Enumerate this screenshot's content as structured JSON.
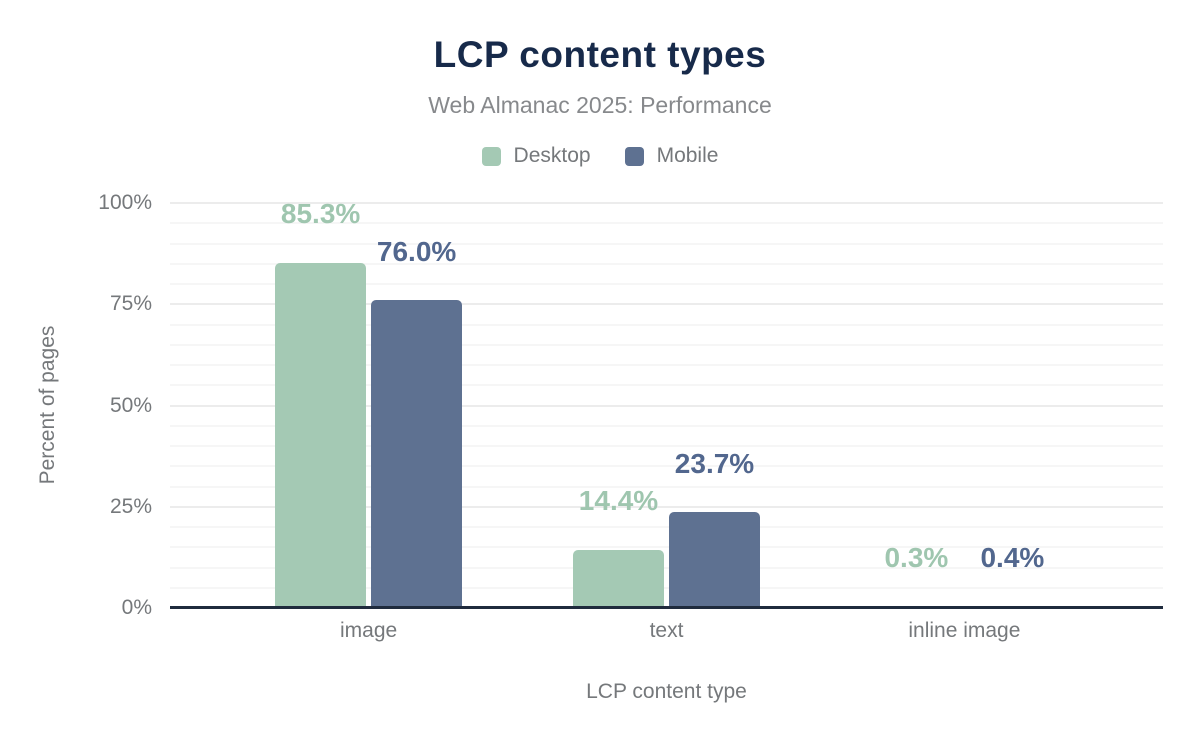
{
  "chart_data": {
    "type": "bar",
    "title": "LCP content types",
    "subtitle": "Web Almanac 2025: Performance",
    "categories": [
      "image",
      "text",
      "inline image"
    ],
    "series": [
      {
        "name": "Desktop",
        "values": [
          85.3,
          14.4,
          0.3
        ],
        "labels": [
          "85.3%",
          "14.4%",
          "0.3%"
        ],
        "color": "#a4c9b4",
        "label_color": "#9fc6af"
      },
      {
        "name": "Mobile",
        "values": [
          76.0,
          23.7,
          0.4
        ],
        "labels": [
          "76.0%",
          "23.7%",
          "0.4%"
        ],
        "color": "#5e7191",
        "label_color": "#52678e"
      }
    ],
    "xlabel": "LCP content type",
    "ylabel": "Percent of pages",
    "ylim": [
      0,
      100
    ],
    "yticks": [
      {
        "value": 0,
        "label": "0%"
      },
      {
        "value": 25,
        "label": "25%"
      },
      {
        "value": 50,
        "label": "50%"
      },
      {
        "value": 75,
        "label": "75%"
      },
      {
        "value": 100,
        "label": "100%"
      }
    ],
    "grid": {
      "minor_step": 5,
      "major_step": 25,
      "show": true
    },
    "legend_position": "top"
  },
  "style": {
    "title_color": "#172a4a",
    "subtitle_color": "#87898c",
    "axis_text_color": "#75787b",
    "baseline_color": "#1f2b3d",
    "minor_grid_color": "#f6f6f6",
    "major_grid_color": "#ececec",
    "background": "#ffffff"
  }
}
